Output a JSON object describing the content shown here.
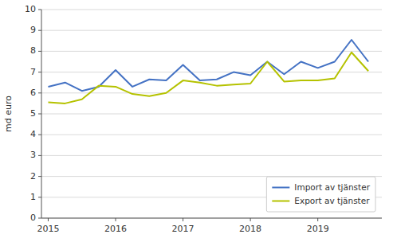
{
  "chart_data": {
    "type": "line",
    "ylabel": "md euro",
    "x": [
      2015.0,
      2015.25,
      2015.5,
      2015.75,
      2016.0,
      2016.25,
      2016.5,
      2016.75,
      2017.0,
      2017.25,
      2017.5,
      2017.75,
      2018.0,
      2018.25,
      2018.5,
      2018.75,
      2019.0,
      2019.25,
      2019.5,
      2019.75
    ],
    "series": [
      {
        "name": "Import av tjänster",
        "color": "#4472c4",
        "values": [
          6.3,
          6.5,
          6.1,
          6.3,
          7.1,
          6.3,
          6.65,
          6.6,
          7.35,
          6.6,
          6.65,
          7.0,
          6.85,
          7.5,
          6.9,
          7.5,
          7.2,
          7.5,
          8.55,
          7.5
        ]
      },
      {
        "name": "Export av tjänster",
        "color": "#b5c200",
        "values": [
          5.55,
          5.5,
          5.7,
          6.35,
          6.3,
          5.95,
          5.85,
          6.0,
          6.6,
          6.5,
          6.35,
          6.4,
          6.45,
          7.5,
          6.55,
          6.6,
          6.6,
          6.7,
          7.95,
          7.05
        ]
      }
    ],
    "xlim": [
      2014.9,
      2019.95
    ],
    "xticks": [
      2015,
      2016,
      2017,
      2018,
      2019
    ],
    "ylim": [
      0,
      10
    ],
    "yticks": [
      0,
      1,
      2,
      3,
      4,
      5,
      6,
      7,
      8,
      9,
      10
    ],
    "grid": true,
    "legend": "lower right"
  }
}
